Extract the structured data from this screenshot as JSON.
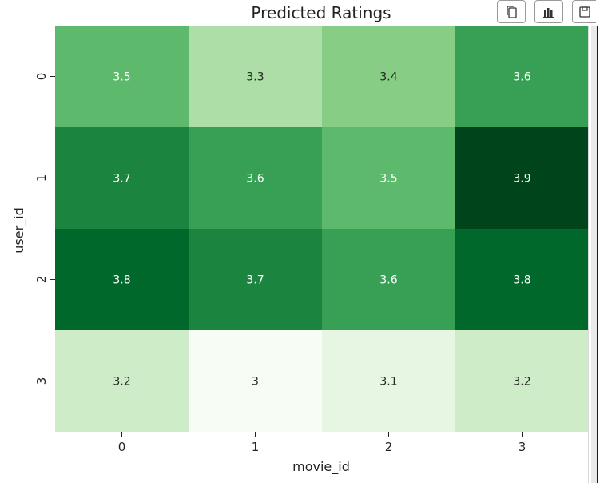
{
  "chart_data": {
    "type": "heatmap",
    "title": "Predicted Ratings",
    "xlabel": "movie_id",
    "ylabel": "user_id",
    "x_categories": [
      "0",
      "1",
      "2",
      "3"
    ],
    "y_categories": [
      "0",
      "1",
      "2",
      "3"
    ],
    "values": [
      [
        3.5,
        3.3,
        3.4,
        3.6
      ],
      [
        3.7,
        3.6,
        3.5,
        3.9
      ],
      [
        3.8,
        3.7,
        3.6,
        3.8
      ],
      [
        3.2,
        3.0,
        3.1,
        3.2
      ]
    ],
    "annotations": [
      [
        "3.5",
        "3.3",
        "3.4",
        "3.6"
      ],
      [
        "3.7",
        "3.6",
        "3.5",
        "3.9"
      ],
      [
        "3.8",
        "3.7",
        "3.6",
        "3.8"
      ],
      [
        "3.2",
        "3",
        "3.1",
        "3.2"
      ]
    ],
    "colormap": "Greens",
    "vmin": 3.0,
    "vmax": 3.9,
    "colorbar": false
  },
  "toolbar": {
    "buttons": [
      {
        "name": "copy-icon"
      },
      {
        "name": "bar-chart-icon"
      },
      {
        "name": "save-icon"
      }
    ]
  }
}
